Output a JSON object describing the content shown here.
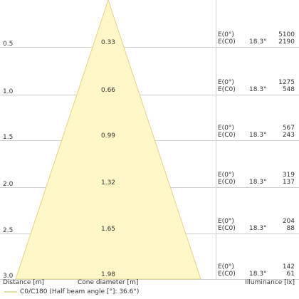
{
  "beam_color": "#FFF7C8",
  "beam_stroke": "#E3D486",
  "grid_color": "#CFCFCF",
  "text_color": "#333333",
  "rows": [
    {
      "distance": "0.5",
      "diameter": "0.33",
      "e0_label": "E(0°)",
      "ec0_label": "E(C0)",
      "angle": "18.3°",
      "e0_value": "5100",
      "ec0_value": "2190"
    },
    {
      "distance": "1.0",
      "diameter": "0.66",
      "e0_label": "E(0°)",
      "ec0_label": "E(C0)",
      "angle": "18.3°",
      "e0_value": "1275",
      "ec0_value": "548"
    },
    {
      "distance": "1.5",
      "diameter": "0.99",
      "e0_label": "E(0°)",
      "ec0_label": "E(C0)",
      "angle": "18.3°",
      "e0_value": "567",
      "ec0_value": "243"
    },
    {
      "distance": "2.0",
      "diameter": "1.32",
      "e0_label": "E(0°)",
      "ec0_label": "E(C0)",
      "angle": "18.3°",
      "e0_value": "319",
      "ec0_value": "137"
    },
    {
      "distance": "2.5",
      "diameter": "1.65",
      "e0_label": "E(0°)",
      "ec0_label": "E(C0)",
      "angle": "18.3°",
      "e0_value": "204",
      "ec0_value": "88"
    },
    {
      "distance": "3.0",
      "diameter": "1.98",
      "e0_label": "E(0°)",
      "ec0_label": "E(C0)",
      "angle": "18.3°",
      "e0_value": "142",
      "ec0_value": "61"
    }
  ],
  "footer": {
    "distance_label": "Distance [m]",
    "cone_label": "Cone diameter [m]",
    "illuminance_label": "Illuminance [lx]"
  },
  "legend": {
    "label": "C0/C180 (Half beam angle [°]: 36.6°)",
    "line_color": "#E3D486"
  }
}
